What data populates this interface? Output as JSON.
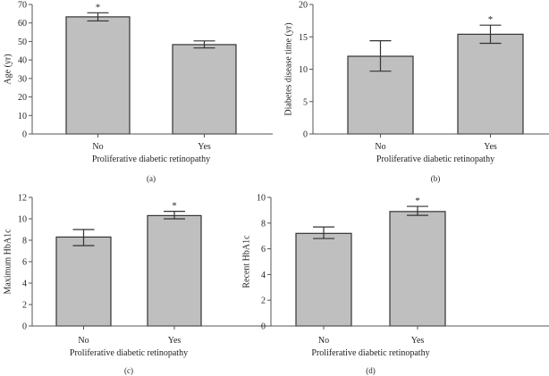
{
  "chart_data": [
    {
      "type": "bar",
      "panel_label": "(a)",
      "ylabel": "Age (yr)",
      "xlabel": "Proliferative diabetic retinopathy",
      "categories": [
        "No",
        "Yes"
      ],
      "values": [
        63.3,
        48.3
      ],
      "error_low": [
        61.1,
        46.5
      ],
      "error_high": [
        65.5,
        50.3
      ],
      "significance": [
        "*",
        ""
      ],
      "ylim": [
        0,
        70
      ],
      "yticks": [
        0,
        10,
        20,
        30,
        40,
        50,
        60,
        70
      ],
      "grid": false,
      "bar_color": "#bfbfbf"
    },
    {
      "type": "bar",
      "panel_label": "(b)",
      "ylabel": "Diabetes disease time (yr)",
      "xlabel": "Proliferative diabetic retinopathy",
      "categories": [
        "No",
        "Yes"
      ],
      "values": [
        12.0,
        15.4
      ],
      "error_low": [
        9.7,
        14.0
      ],
      "error_high": [
        14.4,
        16.8
      ],
      "significance": [
        "",
        "*"
      ],
      "ylim": [
        0,
        20
      ],
      "yticks": [
        0,
        5,
        10,
        15,
        20
      ],
      "grid": false,
      "bar_color": "#bfbfbf"
    },
    {
      "type": "bar",
      "panel_label": "(c)",
      "ylabel": "Maximum HbA1c",
      "xlabel": "Proliferative diabetic retinopathy",
      "categories": [
        "No",
        "Yes"
      ],
      "values": [
        8.3,
        10.3
      ],
      "error_low": [
        7.5,
        10.0
      ],
      "error_high": [
        9.0,
        10.7
      ],
      "significance": [
        "",
        "*"
      ],
      "ylim": [
        0,
        12
      ],
      "yticks": [
        0,
        2,
        4,
        6,
        8,
        10,
        12
      ],
      "grid": false,
      "bar_color": "#bfbfbf"
    },
    {
      "type": "bar",
      "panel_label": "(d)",
      "ylabel": "Recent HbA1c",
      "xlabel": "Proliferative diabetic retinopathy",
      "categories": [
        "No",
        "Yes"
      ],
      "values": [
        7.2,
        8.9
      ],
      "error_low": [
        6.8,
        8.6
      ],
      "error_high": [
        7.7,
        9.3
      ],
      "significance": [
        "",
        "*"
      ],
      "ylim": [
        0,
        10
      ],
      "yticks": [
        0,
        2,
        4,
        6,
        8,
        10
      ],
      "grid": false,
      "bar_color": "#bfbfbf"
    }
  ]
}
